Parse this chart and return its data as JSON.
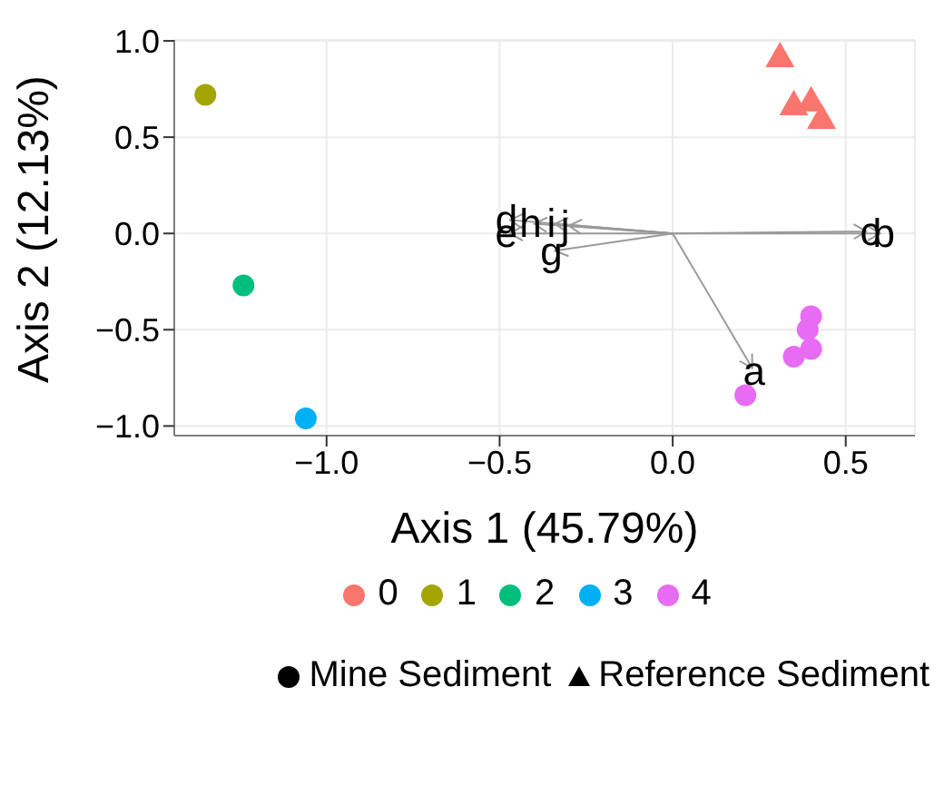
{
  "chart_data": {
    "type": "scatter",
    "xlabel": "Axis 1 (45.79%)",
    "ylabel": "Axis 2 (12.13%)",
    "xlim": [
      -1.44,
      0.7
    ],
    "ylim": [
      -1.05,
      1.005
    ],
    "xticks": [
      {
        "value": -1.0,
        "label": "−1.0"
      },
      {
        "value": -0.5,
        "label": "−0.5"
      },
      {
        "value": 0.0,
        "label": "0.0"
      },
      {
        "value": 0.5,
        "label": "0.5"
      }
    ],
    "yticks": [
      {
        "value": -1.0,
        "label": "−1.0"
      },
      {
        "value": -0.5,
        "label": "−0.5"
      },
      {
        "value": 0.0,
        "label": "0.0"
      },
      {
        "value": 0.5,
        "label": "0.5"
      },
      {
        "value": 1.0,
        "label": "1.0"
      }
    ],
    "grid": true,
    "legend": "bottom",
    "series": [
      {
        "name": "0",
        "color": "#f8766d",
        "marker": "triangle",
        "x": [
          0.31,
          0.35,
          0.4,
          0.43
        ],
        "values": [
          0.92,
          0.67,
          0.69,
          0.6
        ]
      },
      {
        "name": "1",
        "color": "#a3a500",
        "marker": "circle",
        "x": [
          -1.35
        ],
        "values": [
          0.72
        ]
      },
      {
        "name": "2",
        "color": "#00bf7d",
        "marker": "circle",
        "x": [
          -1.24
        ],
        "values": [
          -0.27
        ]
      },
      {
        "name": "3",
        "color": "#00b0f6",
        "marker": "circle",
        "x": [
          -1.06
        ],
        "values": [
          -0.96
        ]
      },
      {
        "name": "4",
        "color": "#e76bf3",
        "marker": "circle",
        "x": [
          0.21,
          0.35,
          0.4,
          0.39,
          0.4
        ],
        "values": [
          -0.84,
          -0.64,
          -0.6,
          -0.5,
          -0.43
        ]
      }
    ],
    "annotations": [
      "Mine Sediment",
      "Reference Sediment",
      "a",
      "b",
      "c",
      "d",
      "e",
      "g",
      "h",
      "i",
      "j"
    ]
  }
}
